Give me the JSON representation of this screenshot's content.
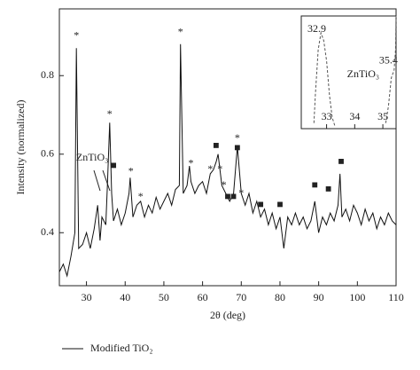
{
  "chart_data": [
    {
      "type": "line",
      "x_label": "2θ (deg)",
      "y_label": "Intensity (normalized)",
      "xlim": [
        23,
        110
      ],
      "ylim": [
        0.265,
        0.97
      ],
      "xticks": [
        30,
        40,
        50,
        60,
        70,
        80,
        90,
        100,
        110
      ],
      "yticks": [
        0.4,
        0.6,
        0.8
      ],
      "legend": "bottom-left",
      "series": [
        {
          "name": "Modified TiO₂",
          "color": "#111111",
          "x": [
            23,
            24,
            25,
            26,
            27,
            27.4,
            28,
            29,
            30,
            31,
            32,
            32.9,
            33.5,
            34,
            35,
            35.4,
            36,
            36.5,
            37,
            38,
            39,
            40,
            41,
            41.3,
            42,
            43,
            44,
            45,
            46,
            47,
            48,
            49,
            50,
            51,
            52,
            53,
            54,
            54.3,
            55,
            56,
            56.6,
            57,
            58,
            59,
            60,
            61,
            62,
            62.8,
            63.5,
            64,
            65,
            66,
            67,
            68,
            69,
            70,
            71,
            72,
            73,
            74,
            75,
            76,
            77,
            78,
            79,
            80,
            81,
            82,
            83,
            84,
            85,
            86,
            87,
            88,
            89,
            90,
            91,
            92,
            93,
            94,
            95,
            95.5,
            96,
            97,
            98,
            99,
            100,
            101,
            102,
            103,
            104,
            105,
            106,
            107,
            108,
            109,
            110
          ],
          "values": [
            0.3,
            0.32,
            0.29,
            0.34,
            0.4,
            0.87,
            0.36,
            0.37,
            0.4,
            0.36,
            0.41,
            0.47,
            0.38,
            0.44,
            0.42,
            0.52,
            0.68,
            0.5,
            0.43,
            0.46,
            0.42,
            0.45,
            0.5,
            0.54,
            0.44,
            0.47,
            0.48,
            0.44,
            0.47,
            0.45,
            0.49,
            0.46,
            0.48,
            0.5,
            0.47,
            0.51,
            0.52,
            0.88,
            0.5,
            0.52,
            0.57,
            0.53,
            0.5,
            0.52,
            0.53,
            0.5,
            0.55,
            0.56,
            0.58,
            0.6,
            0.52,
            0.5,
            0.48,
            0.5,
            0.62,
            0.5,
            0.47,
            0.5,
            0.45,
            0.48,
            0.44,
            0.46,
            0.42,
            0.45,
            0.41,
            0.44,
            0.36,
            0.44,
            0.42,
            0.45,
            0.42,
            0.44,
            0.41,
            0.43,
            0.48,
            0.4,
            0.44,
            0.42,
            0.45,
            0.43,
            0.47,
            0.55,
            0.44,
            0.46,
            0.43,
            0.47,
            0.45,
            0.42,
            0.46,
            0.43,
            0.45,
            0.41,
            0.44,
            0.42,
            0.45,
            0.43,
            0.42
          ]
        }
      ],
      "annotations": [
        {
          "text": "*",
          "x": 27.4,
          "y": 0.9
        },
        {
          "text": "*",
          "x": 36,
          "y": 0.7
        },
        {
          "text": "*",
          "x": 41.5,
          "y": 0.555
        },
        {
          "text": "*",
          "x": 44,
          "y": 0.49
        },
        {
          "text": "*",
          "x": 54.3,
          "y": 0.91
        },
        {
          "text": "*",
          "x": 57,
          "y": 0.575
        },
        {
          "text": "*",
          "x": 62,
          "y": 0.56
        },
        {
          "text": "*",
          "x": 64.5,
          "y": 0.56
        },
        {
          "text": "*",
          "x": 65.5,
          "y": 0.52
        },
        {
          "text": "*",
          "x": 69,
          "y": 0.64
        },
        {
          "text": "*",
          "x": 70,
          "y": 0.5
        },
        {
          "text": "■",
          "x": 37,
          "y": 0.57
        },
        {
          "text": "■",
          "x": 63.5,
          "y": 0.62
        },
        {
          "text": "■",
          "x": 66.5,
          "y": 0.49
        },
        {
          "text": "■",
          "x": 68,
          "y": 0.49
        },
        {
          "text": "■",
          "x": 69,
          "y": 0.615
        },
        {
          "text": "■",
          "x": 75,
          "y": 0.47
        },
        {
          "text": "■",
          "x": 80,
          "y": 0.47
        },
        {
          "text": "■",
          "x": 89,
          "y": 0.52
        },
        {
          "text": "■",
          "x": 92.5,
          "y": 0.51
        },
        {
          "text": "■",
          "x": 95.8,
          "y": 0.58
        },
        {
          "text": "ZnTiO₃",
          "x": 31.5,
          "y": 0.59
        }
      ]
    },
    {
      "type": "line",
      "xlim": [
        32.1,
        35.47
      ],
      "ylim": [
        0,
        1
      ],
      "xticks": [
        33,
        34,
        35
      ],
      "series": [
        {
          "name": null,
          "color": "#555555",
          "x": [
            32.55,
            32.6,
            32.7,
            32.8,
            32.9,
            33.0,
            33.1,
            33.2,
            33.3,
            34,
            35.1,
            35.2,
            35.3,
            35.4,
            35.45,
            35.47
          ],
          "values": [
            0.05,
            0.3,
            0.7,
            0.85,
            0.78,
            0.6,
            0.3,
            0.1,
            0.02,
            null,
            0.05,
            0.2,
            0.45,
            0.52,
            0.7,
            1
          ]
        }
      ],
      "annotations": [
        {
          "text": "32.9",
          "x": 32.65,
          "y": 0.88
        },
        {
          "text": "35.4",
          "x": 35.2,
          "y": 0.6
        },
        {
          "text": "ZnTiO₃",
          "x": 34.3,
          "y": 0.48
        }
      ]
    }
  ]
}
